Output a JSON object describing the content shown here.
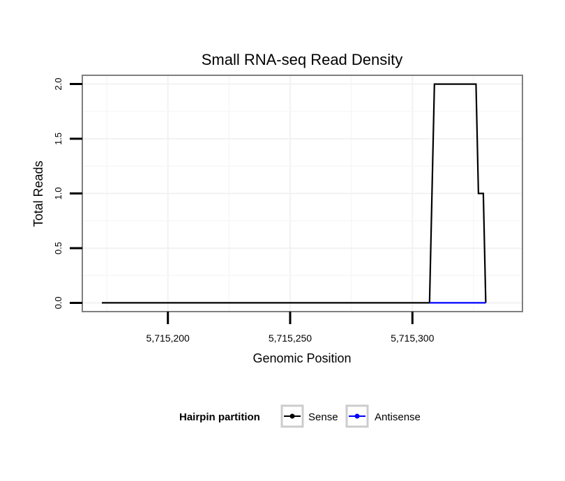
{
  "chart_data": {
    "type": "line",
    "title": "Small RNA-seq Read Density",
    "xlabel": "Genomic Position",
    "ylabel": "Total Reads",
    "xlim": [
      5715165,
      5715345
    ],
    "ylim": [
      -0.08,
      2.08
    ],
    "xticks": [
      5715200,
      5715250,
      5715300
    ],
    "xtick_labels": [
      "5,715,200",
      "5,715,250",
      "5,715,300"
    ],
    "yticks": [
      0.0,
      0.5,
      1.0,
      1.5,
      2.0
    ],
    "ytick_labels": [
      "0.0",
      "0.5",
      "1.0",
      "1.5",
      "2.0"
    ],
    "grid": true,
    "legend": {
      "title": "Hairpin partition",
      "position": "bottom",
      "entries": [
        "Sense",
        "Antisense"
      ]
    },
    "series": [
      {
        "name": "Sense",
        "color": "#000000",
        "x": [
          5715173,
          5715307,
          5715309,
          5715326,
          5715327,
          5715329,
          5715330
        ],
        "y": [
          0,
          0,
          2,
          2,
          1,
          1,
          0
        ]
      },
      {
        "name": "Antisense",
        "color": "#0000ff",
        "x": [
          5715307,
          5715330
        ],
        "y": [
          0,
          0
        ]
      }
    ]
  }
}
